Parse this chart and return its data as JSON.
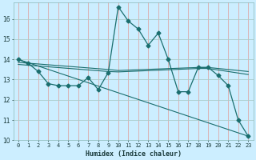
{
  "xlabel": "Humidex (Indice chaleur)",
  "bg_color": "#cceeff",
  "vgrid_color": "#ddaaaa",
  "hgrid_color": "#aacccc",
  "line_color": "#1a6e6e",
  "xlim_min": -0.5,
  "xlim_max": 23.5,
  "ylim_min": 10,
  "ylim_max": 16.8,
  "yticks": [
    10,
    11,
    12,
    13,
    14,
    15,
    16
  ],
  "xticks": [
    0,
    1,
    2,
    3,
    4,
    5,
    6,
    7,
    8,
    9,
    10,
    11,
    12,
    13,
    14,
    15,
    16,
    17,
    18,
    19,
    20,
    21,
    22,
    23
  ],
  "series1_x": [
    0,
    1,
    2,
    3,
    4,
    5,
    6,
    7,
    8,
    9,
    10,
    11,
    12,
    13,
    14,
    15,
    16,
    17,
    18,
    19,
    20,
    21,
    22,
    23
  ],
  "series1_y": [
    14.0,
    13.8,
    13.4,
    12.8,
    12.7,
    12.7,
    12.7,
    13.1,
    12.5,
    13.35,
    16.6,
    15.9,
    15.5,
    14.7,
    15.3,
    14.0,
    12.4,
    12.4,
    13.6,
    13.6,
    13.2,
    12.7,
    11.0,
    10.2
  ],
  "series2_x": [
    0,
    23
  ],
  "series2_y": [
    14.0,
    10.2
  ],
  "series3_x": [
    0,
    9,
    10,
    18,
    19,
    23
  ],
  "series3_y": [
    13.85,
    13.5,
    13.45,
    13.6,
    13.6,
    13.4
  ],
  "series4_x": [
    0,
    9,
    10,
    18,
    19,
    23
  ],
  "series4_y": [
    13.75,
    13.4,
    13.38,
    13.55,
    13.55,
    13.25
  ],
  "xlabel_fontsize": 6,
  "tick_fontsize": 5,
  "ytick_fontsize": 5.5
}
